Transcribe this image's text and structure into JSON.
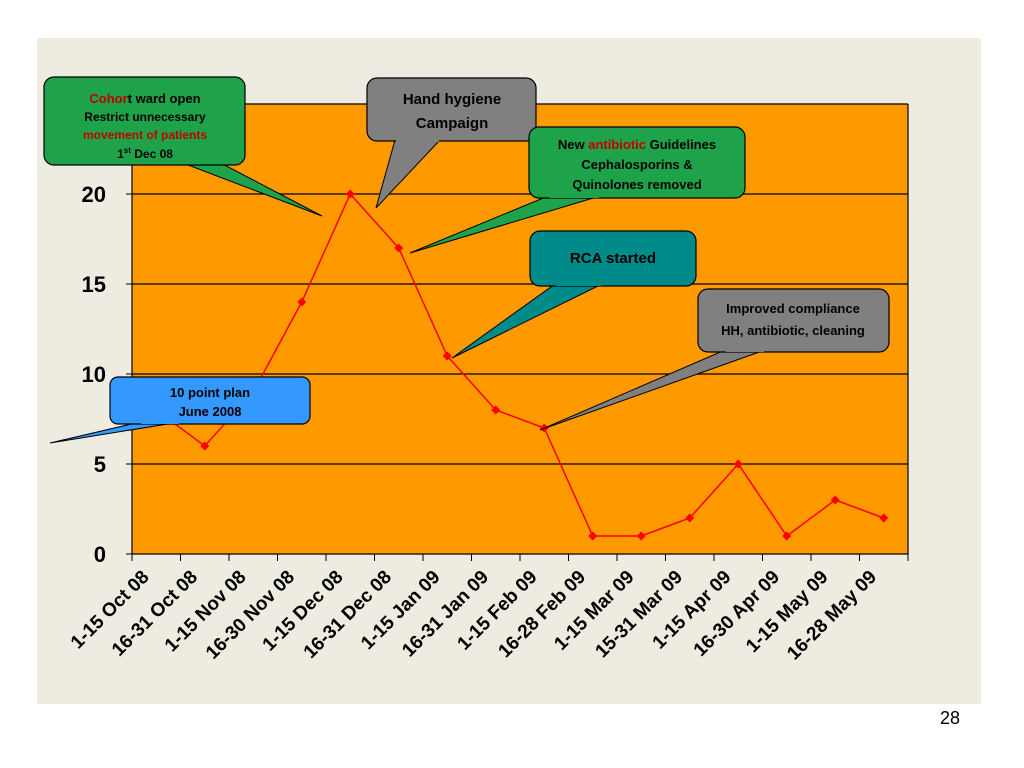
{
  "page": {
    "number": "28"
  },
  "colors": {
    "plot_background": "#ff9900",
    "line": "#ff0000",
    "marker": "#ff0000",
    "grid": "#000000",
    "callout_green": "#1ea34a",
    "callout_gray": "#808080",
    "callout_teal": "#008b8b",
    "callout_blue": "#3399ff",
    "highlight_red": "#c00000"
  },
  "chart_data": {
    "type": "line",
    "title": "",
    "xlabel": "",
    "ylabel": "",
    "ylim": [
      0,
      25
    ],
    "yticks": [
      "0",
      "5",
      "10",
      "15",
      "20"
    ],
    "grid": "horizontal",
    "legend": "none",
    "categories": [
      "1-15 Oct 08",
      "16-31 Oct 08",
      "1-15 Nov 08",
      "16-30 Nov 08",
      "1-15 Dec 08",
      "16-31 Dec 08",
      "1-15 Jan 09",
      "16-31 Jan 09",
      "1-15 Feb 09",
      "16-28 Feb 09",
      "1-15 Mar 09",
      "15-31 Mar 09",
      "1-15 Apr 09",
      "16-30 Apr 09",
      "1-15 May 09",
      "16-28 May 09"
    ],
    "series": [
      {
        "values": [
          8,
          6,
          9,
          14,
          20,
          17,
          11,
          8,
          7,
          1,
          1,
          2,
          5,
          1,
          3,
          2
        ]
      }
    ]
  },
  "callouts": {
    "cohort": {
      "line1_highlight": "Cohor",
      "line1_rest": "t ward open",
      "line2": "Restrict  unnecessary",
      "line3": "movement of patients",
      "line4_num": "1",
      "line4_sup": "st",
      "line4_rest": " Dec 08"
    },
    "hand_hygiene": {
      "line1": "Hand hygiene",
      "line2": "Campaign"
    },
    "antibiotic": {
      "line1_pre": "New ",
      "line1_highlight": "antibiotic",
      "line1_post": " Guidelines",
      "line2": "Cephalosporins &",
      "line3": "Quinolones removed"
    },
    "rca": {
      "line1": "RCA started"
    },
    "compliance": {
      "line1": "Improved compliance",
      "line2": "HH, antibiotic, cleaning"
    },
    "ten_point": {
      "line1": "10 point plan",
      "line2": "June 2008"
    }
  }
}
